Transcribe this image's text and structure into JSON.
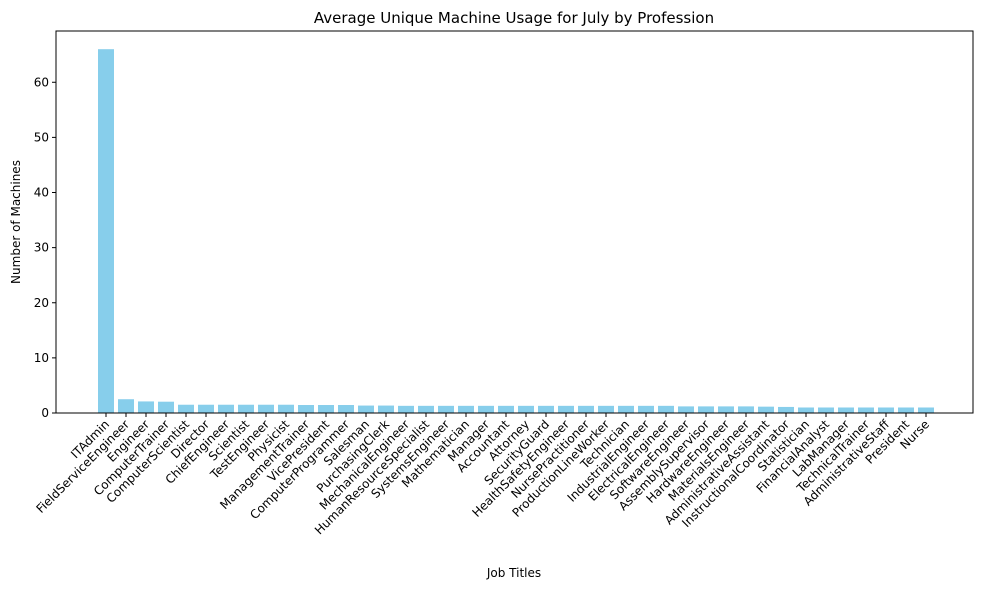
{
  "chart_data": {
    "type": "bar",
    "title": "Average Unique Machine Usage for July by Profession",
    "xlabel": "Job Titles",
    "ylabel": "Number of Machines",
    "ylim": [
      0,
      69.3
    ],
    "yticks": [
      0,
      10,
      20,
      30,
      40,
      50,
      60
    ],
    "grid": false,
    "bar_color": "#87CEEB",
    "categories": [
      "ITAdmin",
      "FieldServiceEngineer",
      "Engineer",
      "ComputerTrainer",
      "ComputerScientist",
      "Director",
      "ChiefEngineer",
      "Scientist",
      "TestEngineer",
      "Physicist",
      "ManagementTrainer",
      "VicePresident",
      "ComputerProgrammer",
      "Salesman",
      "PurchasingClerk",
      "MechanicalEngineer",
      "HumanResourceSpecialist",
      "SystemsEngineer",
      "Mathematician",
      "Manager",
      "Accountant",
      "Attorney",
      "SecurityGuard",
      "HealthSafetyEngineer",
      "NursePractitioner",
      "ProductionLineWorker",
      "Technician",
      "IndustrialEngineer",
      "ElectricalEngineer",
      "SoftwareEngineer",
      "AssemblySupervisor",
      "HardwareEngineer",
      "MaterialsEngineer",
      "AdministrativeAssistant",
      "InstructionalCoordinator",
      "Statistician",
      "FinancialAnalyst",
      "LabManager",
      "TechnicalTrainer",
      "AdministrativeStaff",
      "President",
      "Nurse"
    ],
    "values": [
      66,
      2.5,
      2.1,
      2.05,
      1.5,
      1.5,
      1.5,
      1.5,
      1.5,
      1.5,
      1.45,
      1.45,
      1.45,
      1.35,
      1.35,
      1.3,
      1.3,
      1.3,
      1.3,
      1.3,
      1.3,
      1.3,
      1.3,
      1.3,
      1.3,
      1.3,
      1.3,
      1.3,
      1.3,
      1.2,
      1.2,
      1.2,
      1.2,
      1.15,
      1.1,
      1.0,
      1.0,
      1.0,
      1.0,
      1.0,
      1.0,
      1.0
    ]
  }
}
